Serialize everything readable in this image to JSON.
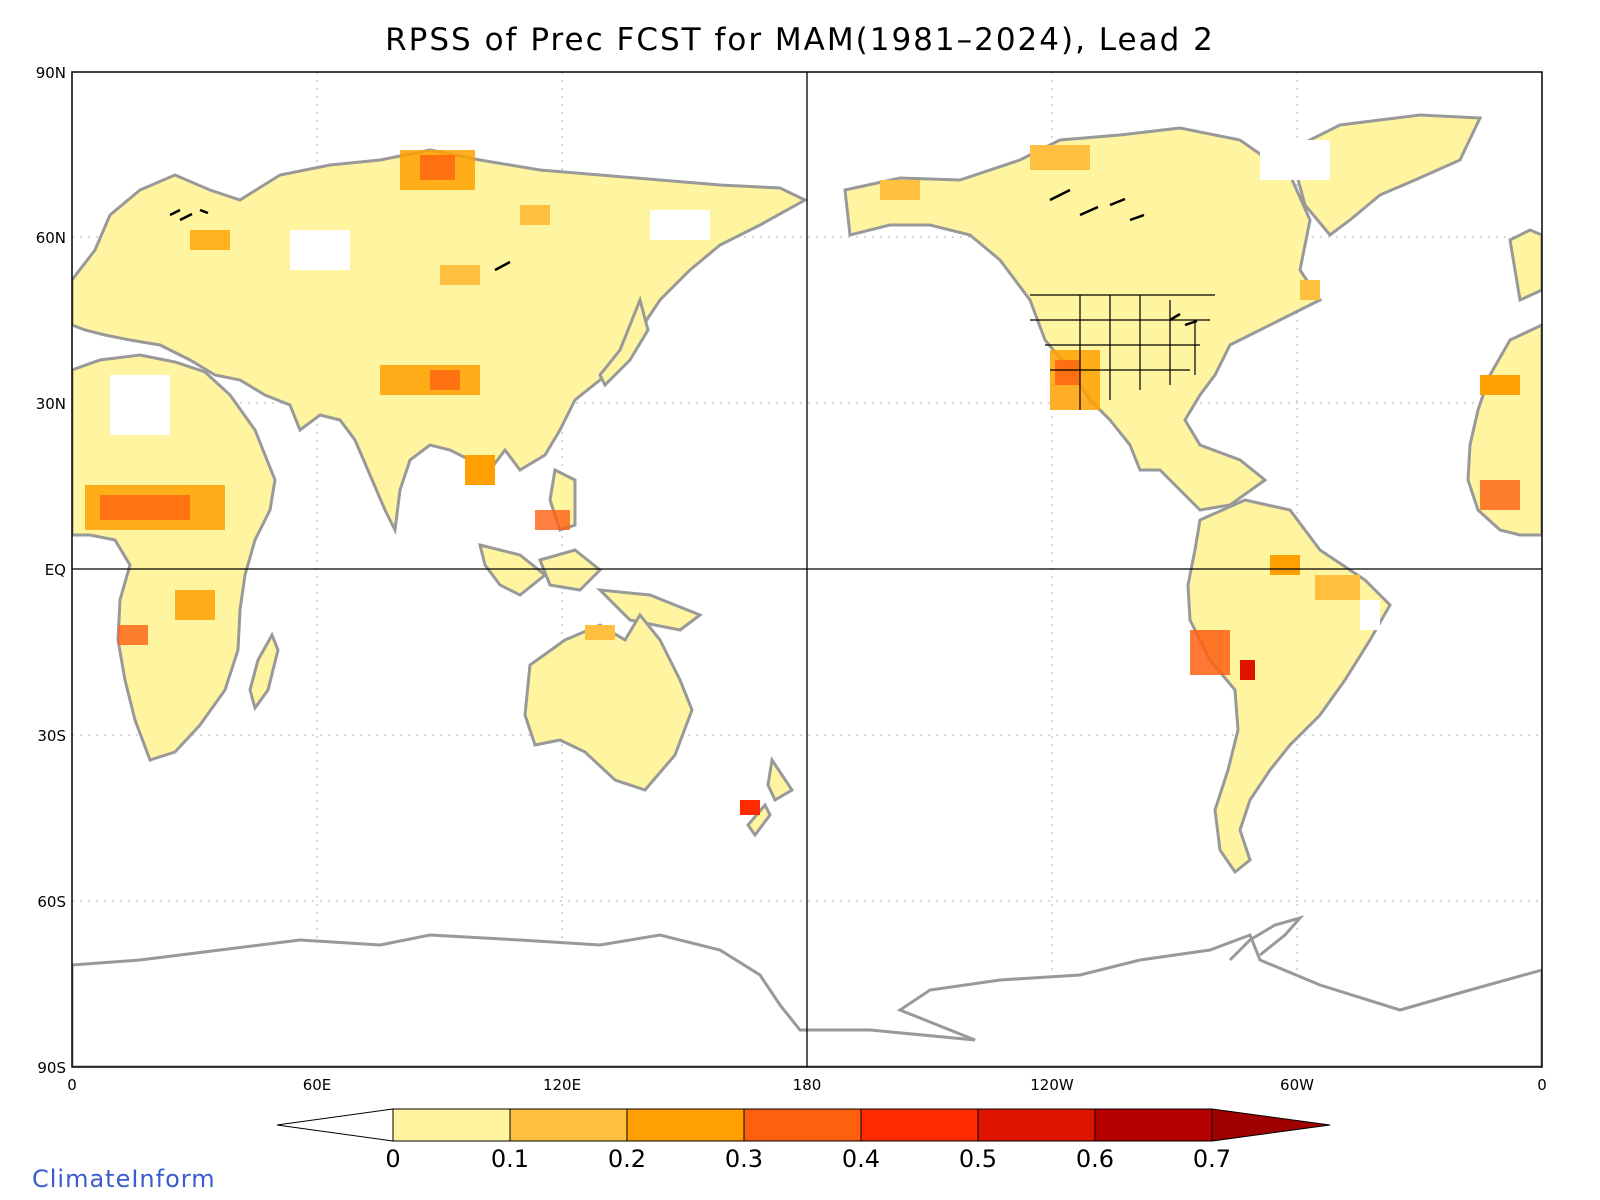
{
  "title": "RPSS of Prec FCST for MAM(1981–2024), Lead 2",
  "credit": "ClimateInform",
  "map": {
    "lat_labels": [
      "90N",
      "60N",
      "30N",
      "EQ",
      "30S",
      "60S",
      "90S"
    ],
    "lon_labels": [
      "0",
      "60E",
      "120E",
      "180",
      "120W",
      "60W",
      "0"
    ],
    "grid": "dotted",
    "colors": {
      "land_outline": "#999999",
      "lakes_and_states": "#000000",
      "background": "#ffffff"
    }
  },
  "colorbar": {
    "labels": [
      "0",
      "0.1",
      "0.2",
      "0.3",
      "0.4",
      "0.5",
      "0.6",
      "0.7"
    ],
    "colors": [
      "#ffffff",
      "#fff5a0",
      "#ffc040",
      "#ffa000",
      "#ff6010",
      "#ff2a00",
      "#dc1400",
      "#b40000",
      "#a00000"
    ]
  }
}
